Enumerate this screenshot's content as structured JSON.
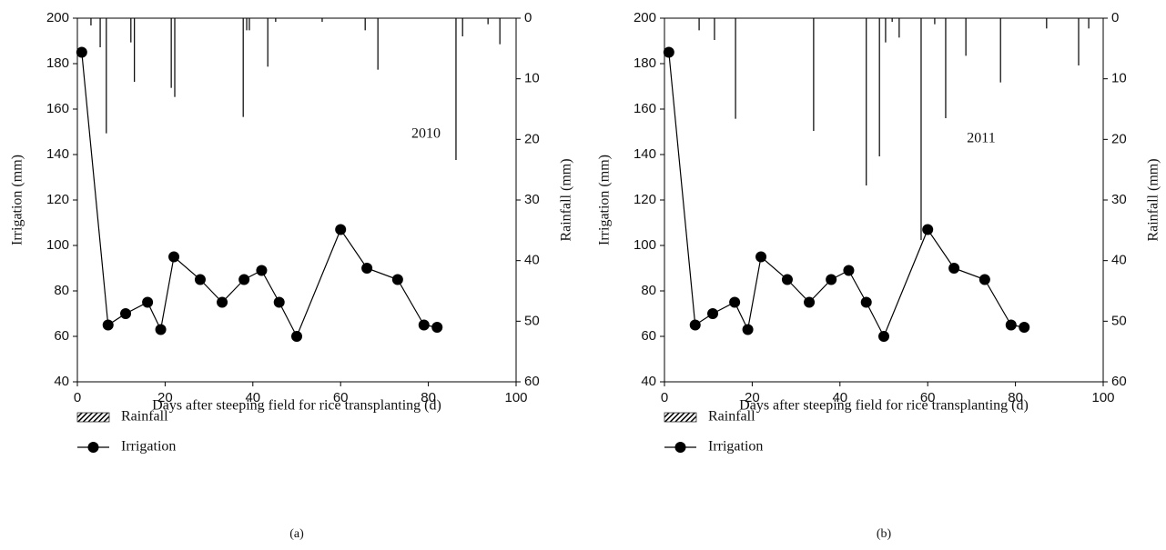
{
  "chart_data": [
    {
      "type": "bar_line",
      "panel_label": "(a)",
      "annotation": "2010",
      "x_label": "Days after steeping field for rice transplanting (d)",
      "y_label": "Irrigation (mm)",
      "y2_label": "Rainfall (mm)",
      "xlim": [
        0,
        100
      ],
      "xticks": [
        0,
        20,
        40,
        60,
        80,
        100
      ],
      "ylim": [
        40,
        200
      ],
      "yticks": [
        40,
        60,
        80,
        100,
        120,
        140,
        160,
        180,
        200
      ],
      "y2lim": [
        60,
        0
      ],
      "y2ticks": [
        0,
        10,
        20,
        30,
        40,
        50,
        60
      ],
      "series": [
        {
          "name": "Rainfall",
          "type": "bar",
          "axis": "y2",
          "color": "#000000",
          "x": [
            3.1,
            5.2,
            6.6,
            12.2,
            13,
            21.4,
            22.2,
            37.8,
            38.6,
            39.2,
            43.4,
            45.2,
            55.8,
            65.6,
            68.5,
            86.3,
            87.8,
            93.6,
            96.3
          ],
          "values": [
            1.2,
            4.8,
            19,
            4,
            10.5,
            11.5,
            13,
            16.3,
            2,
            2,
            8,
            0.6,
            0.6,
            2,
            8.5,
            23.4,
            3,
            1,
            4.3
          ]
        },
        {
          "name": "Irrigation",
          "type": "line",
          "color": "#000000",
          "x": [
            1,
            7,
            11,
            16,
            19,
            22,
            28,
            33,
            38,
            42,
            46,
            50,
            60,
            66,
            73,
            79,
            82
          ],
          "values": [
            185,
            65,
            70,
            75,
            63,
            95,
            85,
            75,
            85,
            89,
            75,
            60,
            107,
            90,
            85,
            65,
            64
          ]
        }
      ]
    },
    {
      "type": "bar_line",
      "panel_label": "(b)",
      "annotation": "2011",
      "x_label": "Days after steeping field for rice transplanting (d)",
      "y_label": "Irrigation (mm)",
      "y2_label": "Rainfall (mm)",
      "xlim": [
        0,
        100
      ],
      "xticks": [
        0,
        20,
        40,
        60,
        80,
        100
      ],
      "ylim": [
        40,
        200
      ],
      "yticks": [
        40,
        60,
        80,
        100,
        120,
        140,
        160,
        180,
        200
      ],
      "y2lim": [
        60,
        0
      ],
      "y2ticks": [
        0,
        10,
        20,
        30,
        40,
        50,
        60
      ],
      "series": [
        {
          "name": "Rainfall",
          "type": "bar",
          "axis": "y2",
          "color": "#000000",
          "x": [
            7.9,
            11.4,
            16.2,
            34,
            46,
            49,
            50.4,
            51.9,
            53.5,
            58.5,
            61.6,
            64.1,
            68.7,
            76.6,
            87.1,
            94.4,
            96.7
          ],
          "values": [
            2,
            3.6,
            16.6,
            18.6,
            27.6,
            22.8,
            4,
            0.6,
            3.2,
            36.6,
            1,
            16.5,
            6.2,
            10.6,
            1.7,
            7.8,
            1.7
          ]
        },
        {
          "name": "Irrigation",
          "type": "line",
          "color": "#000000",
          "x": [
            1,
            7,
            11,
            16,
            19,
            22,
            28,
            33,
            38,
            42,
            46,
            50,
            60,
            66,
            73,
            79,
            82
          ],
          "values": [
            185,
            65,
            70,
            75,
            63,
            95,
            85,
            75,
            85,
            89,
            75,
            60,
            107,
            90,
            85,
            65,
            64
          ]
        }
      ]
    }
  ]
}
